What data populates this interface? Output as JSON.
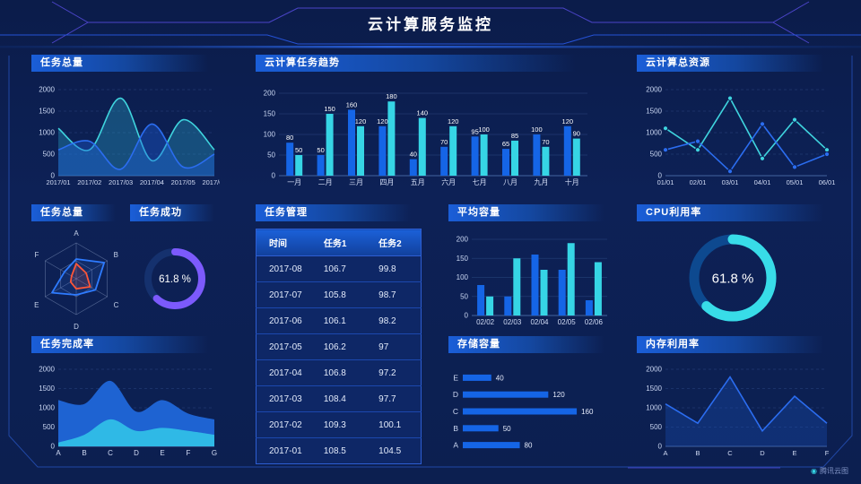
{
  "header": {
    "title": "云计算服务监控"
  },
  "footer": {
    "logo_text": "腾讯云图"
  },
  "colors": {
    "background": "#0c2055",
    "panel_header_blue": "#1a5ed8",
    "bar_blue": "#1565e6",
    "bar_cyan": "#36d5e5",
    "line_blue": "#2b6df0",
    "line_cyan": "#3fd4de",
    "gauge_purple": "#7c5afc",
    "gauge_cyan": "#38dce8",
    "radar_blue": "#2e7bff",
    "radar_red": "#ff5638"
  },
  "panels": {
    "task_total": {
      "title": "任务总量"
    },
    "task_trend": {
      "title": "云计算任务趋势"
    },
    "total_resource": {
      "title": "云计算总资源"
    },
    "radar_total": {
      "title": "任务总量"
    },
    "task_success": {
      "title": "任务成功"
    },
    "task_table": {
      "title": "任务管理"
    },
    "avg_capacity": {
      "title": "平均容量"
    },
    "cpu": {
      "title": "CPU利用率"
    },
    "completion": {
      "title": "任务完成率"
    },
    "storage": {
      "title": "存储容量"
    },
    "memory": {
      "title": "内存利用率"
    }
  },
  "table": {
    "columns": [
      "时间",
      "任务1",
      "任务2"
    ],
    "rows": [
      [
        "2017-08",
        "106.7",
        "99.8"
      ],
      [
        "2017-07",
        "105.8",
        "98.7"
      ],
      [
        "2017-06",
        "106.1",
        "98.2"
      ],
      [
        "2017-05",
        "106.2",
        "97"
      ],
      [
        "2017-04",
        "106.8",
        "97.2"
      ],
      [
        "2017-03",
        "108.4",
        "97.7"
      ],
      [
        "2017-02",
        "109.3",
        "100.1"
      ],
      [
        "2017-01",
        "108.5",
        "104.5"
      ]
    ]
  },
  "chart_data": [
    {
      "id": "task_total",
      "type": "line",
      "title": "任务总量",
      "smooth": true,
      "dash": true,
      "x": [
        "2017/01",
        "2017/02",
        "2017/03",
        "2017/04",
        "2017/05",
        "2017/06"
      ],
      "ymax": 2000,
      "yticks": [
        0,
        500,
        1000,
        1500,
        2000
      ],
      "series": [
        {
          "name": "cyan",
          "color": "#3fd4de",
          "values": [
            1100,
            600,
            1800,
            350,
            1300,
            600
          ],
          "area": "rgba(47,185,220,0.30)"
        },
        {
          "name": "blue",
          "color": "#2b6df0",
          "values": [
            600,
            800,
            150,
            1200,
            200,
            500
          ],
          "area": "rgba(30,95,220,0.38)"
        }
      ]
    },
    {
      "id": "task_trend",
      "type": "bar",
      "title": "云计算任务趋势",
      "labels": true,
      "categories": [
        "一月",
        "二月",
        "三月",
        "四月",
        "五月",
        "六月",
        "七月",
        "八月",
        "九月",
        "十月"
      ],
      "ymax": 200,
      "yticks": [
        0,
        50,
        100,
        150,
        200
      ],
      "series": [
        {
          "name": "blue",
          "color": "#1565e6",
          "values": [
            80,
            50,
            160,
            120,
            40,
            70,
            95,
            65,
            100,
            120
          ]
        },
        {
          "name": "cyan",
          "color": "#36d5e5",
          "values": [
            50,
            150,
            120,
            180,
            140,
            120,
            100,
            85,
            70,
            90
          ]
        }
      ]
    },
    {
      "id": "total_resource",
      "type": "line",
      "title": "云计算总资源",
      "smooth": false,
      "dash": true,
      "markers": true,
      "x": [
        "01/01",
        "02/01",
        "03/01",
        "04/01",
        "05/01",
        "06/01"
      ],
      "ymax": 2000,
      "yticks": [
        0,
        500,
        1000,
        1500,
        2000
      ],
      "series": [
        {
          "name": "cyan",
          "color": "#3fd4de",
          "values": [
            1100,
            600,
            1800,
            400,
            1300,
            600
          ]
        },
        {
          "name": "blue",
          "color": "#2b6df0",
          "values": [
            600,
            800,
            100,
            1200,
            200,
            500
          ]
        }
      ]
    },
    {
      "id": "radar_total",
      "type": "radar",
      "title": "任务总量",
      "indicators": [
        "A",
        "B",
        "C",
        "D",
        "E",
        "F"
      ],
      "max": 100,
      "series": [
        {
          "name": "blue",
          "color": "#2e7bff",
          "fill": "rgba(46,123,255,0.12)",
          "values": [
            55,
            90,
            62,
            45,
            78,
            38
          ]
        },
        {
          "name": "red",
          "color": "#ff5638",
          "fill": "rgba(255,86,56,0.15)",
          "values": [
            42,
            32,
            45,
            28,
            18,
            15
          ]
        }
      ]
    },
    {
      "id": "success_gauge",
      "type": "donut",
      "title": "任务成功",
      "value": 61.8,
      "label": "61.8 %",
      "color": "#7c5afc",
      "track": "#15316e"
    },
    {
      "id": "avg_capacity",
      "type": "bar",
      "title": "平均容量",
      "labels": false,
      "categories": [
        "02/02",
        "02/03",
        "02/04",
        "02/05",
        "02/06"
      ],
      "ymax": 200,
      "yticks": [
        0,
        50,
        100,
        150,
        200
      ],
      "series": [
        {
          "name": "blue",
          "color": "#1565e6",
          "values": [
            80,
            50,
            160,
            120,
            40
          ]
        },
        {
          "name": "cyan",
          "color": "#36d5e5",
          "values": [
            50,
            150,
            120,
            190,
            140
          ]
        }
      ]
    },
    {
      "id": "cpu_gauge",
      "type": "donut",
      "title": "CPU利用率",
      "value": 61.8,
      "label": "61.8 %",
      "color": "#38dce8",
      "track": "#0d498f"
    },
    {
      "id": "completion",
      "type": "area",
      "title": "任务完成率",
      "smooth": true,
      "dash": true,
      "x": [
        "A",
        "B",
        "C",
        "D",
        "E",
        "F",
        "G"
      ],
      "ymax": 2000,
      "yticks": [
        0,
        500,
        1000,
        1500,
        2000
      ],
      "series": [
        {
          "name": "blue",
          "color": "#1e63d2",
          "values": [
            1200,
            1100,
            1700,
            900,
            1200,
            850,
            700
          ]
        },
        {
          "name": "cyan",
          "color": "#2fb9e6",
          "values": [
            100,
            300,
            700,
            400,
            480,
            400,
            300
          ]
        }
      ]
    },
    {
      "id": "storage",
      "type": "hbar",
      "title": "存储容量",
      "categories": [
        "E",
        "D",
        "C",
        "B",
        "A"
      ],
      "values": [
        40,
        120,
        160,
        50,
        80
      ],
      "xmax": 175,
      "color": "#1565e6"
    },
    {
      "id": "memory",
      "type": "line",
      "title": "内存利用率",
      "smooth": false,
      "dash": true,
      "x": [
        "A",
        "B",
        "C",
        "D",
        "E",
        "F"
      ],
      "ymax": 2000,
      "yticks": [
        0,
        500,
        1000,
        1500,
        2000
      ],
      "series": [
        {
          "name": "blue",
          "color": "#2b6df0",
          "values": [
            1100,
            600,
            1800,
            400,
            1300,
            600
          ],
          "area": "rgba(28,86,200,0.30)"
        }
      ]
    }
  ]
}
